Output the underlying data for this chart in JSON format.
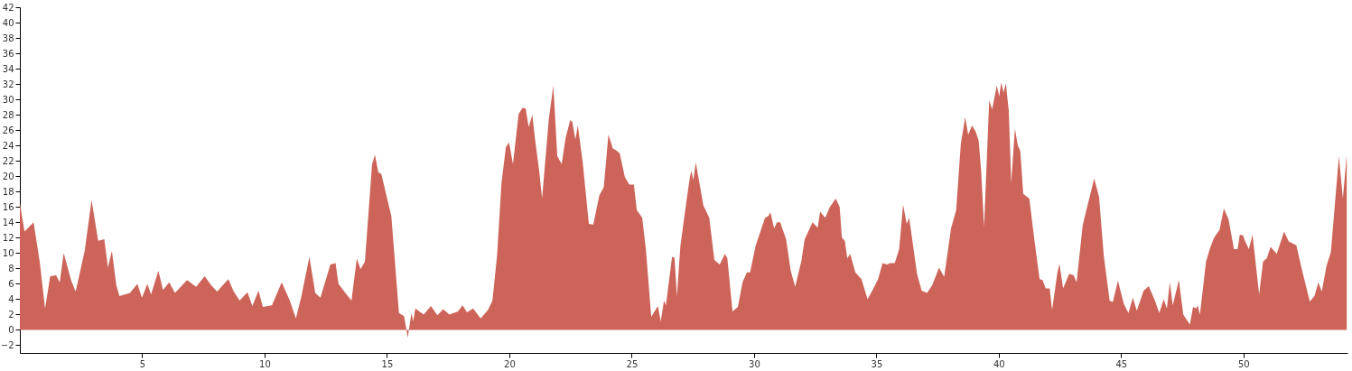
{
  "chart_data": {
    "type": "area",
    "color": "#cd6459",
    "xlim": [
      0,
      54.25
    ],
    "ylim": [
      -3,
      42
    ],
    "xticks": [
      5,
      10,
      15,
      20,
      25,
      30,
      35,
      40,
      45,
      50
    ],
    "yticks": [
      -2,
      0,
      2,
      4,
      6,
      8,
      10,
      12,
      14,
      16,
      18,
      20,
      22,
      24,
      26,
      28,
      30,
      32,
      34,
      36,
      38,
      40,
      42
    ],
    "x": [
      0,
      0.19,
      0.56,
      0.81,
      1.03,
      1.24,
      1.48,
      1.63,
      1.79,
      2.1,
      2.28,
      2.65,
      2.93,
      3.2,
      3.45,
      3.6,
      3.76,
      3.94,
      4.07,
      4.5,
      4.8,
      4.99,
      5.21,
      5.36,
      5.66,
      5.85,
      6.1,
      6.34,
      6.83,
      7.2,
      7.55,
      7.82,
      8.06,
      8.52,
      8.74,
      8.98,
      9.3,
      9.5,
      9.75,
      9.93,
      10.3,
      10.7,
      11.03,
      11.28,
      11.5,
      11.83,
      12.07,
      12.28,
      12.69,
      12.9,
      13.02,
      13.3,
      13.55,
      13.77,
      13.92,
      14.1,
      14.39,
      14.51,
      14.65,
      14.77,
      15.18,
      15.49,
      15.7,
      15.85,
      16,
      16.07,
      16.16,
      16.5,
      16.8,
      17.06,
      17.3,
      17.55,
      17.9,
      18.09,
      18.27,
      18.52,
      18.83,
      19.13,
      19.31,
      19.5,
      19.68,
      19.86,
      19.99,
      20.15,
      20.38,
      20.54,
      20.67,
      20.79,
      20.94,
      21.06,
      21.22,
      21.34,
      21.61,
      21.8,
      21.96,
      22.14,
      22.3,
      22.49,
      22.57,
      22.7,
      22.8,
      23,
      23.25,
      23.43,
      23.68,
      23.86,
      24.05,
      24.23,
      24.35,
      24.51,
      24.72,
      24.9,
      25.09,
      25.21,
      25.43,
      25.58,
      25.8,
      26.07,
      26.19,
      26.32,
      26.4,
      26.65,
      26.75,
      26.85,
      26.99,
      27.24,
      27.38,
      27.44,
      27.52,
      27.62,
      27.93,
      28.17,
      28.38,
      28.6,
      28.81,
      28.91,
      29.12,
      29.34,
      29.53,
      29.71,
      29.84,
      30.06,
      30.45,
      30.58,
      30.67,
      30.82,
      30.94,
      31.07,
      31.31,
      31.5,
      31.68,
      31.93,
      32.07,
      32.39,
      32.6,
      32.7,
      32.91,
      33.1,
      33.34,
      33.5,
      33.59,
      33.71,
      33.81,
      33.93,
      34.14,
      34.39,
      34.64,
      34.88,
      35.07,
      35.25,
      35.44,
      35.56,
      35.75,
      35.93,
      36.09,
      36.24,
      36.34,
      36.66,
      36.85,
      37.07,
      37.28,
      37.56,
      37.77,
      38.05,
      38.26,
      38.45,
      38.63,
      38.75,
      38.91,
      39.06,
      39.18,
      39.28,
      39.4,
      39.61,
      39.73,
      39.92,
      40.02,
      40.1,
      40.2,
      40.29,
      40.41,
      40.51,
      40.66,
      40.78,
      40.88,
      41,
      41.25,
      41.46,
      41.67,
      41.79,
      41.92,
      42.08,
      42.18,
      42.39,
      42.48,
      42.63,
      42.88,
      43.06,
      43.18,
      43.43,
      43.55,
      43.9,
      44.1,
      44.29,
      44.53,
      44.66,
      44.87,
      45.11,
      45.3,
      45.48,
      45.64,
      45.92,
      46.13,
      46.38,
      46.56,
      46.74,
      46.87,
      46.99,
      47.11,
      47.36,
      47.54,
      47.81,
      47.94,
      48.06,
      48.13,
      48.22,
      48.47,
      48.63,
      48.8,
      49.02,
      49.2,
      49.39,
      49.61,
      49.76,
      49.85,
      49.98,
      50.06,
      50.22,
      50.37,
      50.64,
      50.8,
      50.95,
      51.11,
      51.36,
      51.66,
      51.85,
      52.16,
      52.4,
      52.71,
      52.9,
      53.06,
      53.2,
      53.39,
      53.57,
      53.9,
      54.06,
      54.22
    ],
    "values": [
      16.5,
      12.8,
      14,
      8.9,
      2.8,
      7,
      7.1,
      6.2,
      10,
      6.4,
      5,
      10.3,
      16.9,
      11.6,
      11.8,
      8.1,
      10.3,
      5.8,
      4.4,
      4.8,
      6,
      4.2,
      6,
      4.6,
      7.7,
      5.2,
      6.2,
      4.8,
      6.5,
      5.6,
      7,
      5.8,
      5,
      6.6,
      5,
      3.8,
      4.9,
      3.1,
      5.1,
      3,
      3.2,
      6.2,
      3.8,
      1.5,
      4.3,
      9.5,
      4.8,
      4.2,
      8.5,
      8.7,
      6,
      4.8,
      3.8,
      9.3,
      7.9,
      8.9,
      21.5,
      22.8,
      20.5,
      20.3,
      14.8,
      2.2,
      1.8,
      -1,
      2.2,
      1.1,
      2.8,
      2,
      3.1,
      1.9,
      2.7,
      2,
      2.4,
      3.2,
      2.3,
      2.8,
      1.5,
      2.6,
      3.8,
      9.7,
      19.1,
      23.8,
      24.4,
      21.6,
      28.1,
      28.9,
      28.8,
      26.4,
      28,
      24.6,
      20.7,
      17.1,
      27.3,
      31.8,
      22.6,
      21.6,
      25,
      27.3,
      27.1,
      24.8,
      26.6,
      21.8,
      13.8,
      13.7,
      17.5,
      18.6,
      25.4,
      23.6,
      23.4,
      23,
      19.9,
      18.9,
      18.9,
      15.6,
      14.6,
      10.5,
      1.7,
      3.1,
      1.1,
      3.8,
      3.2,
      9.5,
      9.4,
      4.4,
      10.9,
      16.8,
      19.9,
      20.7,
      19.5,
      21.8,
      16.2,
      14.6,
      9.1,
      8.5,
      9.9,
      9.3,
      2.4,
      3,
      6.2,
      7.5,
      7.5,
      10.9,
      14.6,
      14.8,
      15.3,
      13.2,
      14,
      14,
      11.8,
      7.7,
      5.6,
      8.9,
      11.8,
      14,
      13.3,
      15.4,
      14.6,
      16,
      17.1,
      16,
      12,
      11.6,
      9.3,
      9.9,
      7.5,
      6.6,
      4,
      5.4,
      6.6,
      8.7,
      8.5,
      8.7,
      8.7,
      10.5,
      16.3,
      13.8,
      14.6,
      7.3,
      5.1,
      4.8,
      5.8,
      8.1,
      6.9,
      13.2,
      15.6,
      24.2,
      27.7,
      25.4,
      26.6,
      25.8,
      24.6,
      20.7,
      13.4,
      29.9,
      28.7,
      31.8,
      30.4,
      32.2,
      30.9,
      32.1,
      28.5,
      19.1,
      26.2,
      24,
      23.3,
      17.7,
      17.1,
      11.6,
      6.6,
      6.5,
      5.4,
      5.4,
      2.6,
      7.3,
      8.6,
      5.4,
      7.3,
      7.1,
      6.2,
      13.6,
      15.2,
      19.7,
      17.3,
      9.7,
      3.8,
      3.6,
      6.4,
      3.4,
      2.2,
      4.2,
      2.5,
      5.1,
      5.7,
      3.8,
      2.2,
      4,
      2.8,
      6.2,
      3.2,
      6.5,
      2,
      0.7,
      3,
      2.8,
      3.2,
      2,
      8.9,
      10.6,
      12,
      13,
      15.8,
      14.4,
      10.5,
      10.5,
      12.4,
      12.3,
      11.6,
      10.5,
      12.4,
      4.6,
      8.9,
      9.3,
      10.8,
      9.9,
      12.8,
      11.5,
      11,
      7.7,
      3.7,
      4.4,
      6.2,
      5,
      8.3,
      10.1,
      22.6,
      17.1,
      22.8
    ]
  }
}
